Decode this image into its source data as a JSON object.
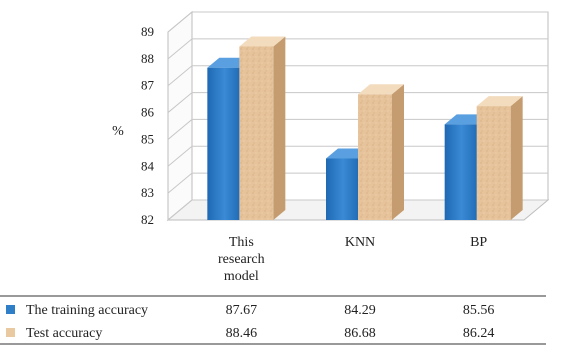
{
  "chart_data": {
    "type": "bar",
    "categories": [
      [
        "This",
        "research",
        "model"
      ],
      [
        "KNN"
      ],
      [
        "BP"
      ]
    ],
    "ylabel": "%",
    "ylim": [
      82,
      89
    ],
    "yticks": [
      82,
      83,
      84,
      85,
      86,
      87,
      88,
      89
    ],
    "grid": true,
    "legend": "table below chart",
    "series": [
      {
        "name": "The training accuracy",
        "values": [
          87.67,
          84.29,
          85.56
        ],
        "color": "#2f7fc8"
      },
      {
        "name": "Test accuracy",
        "values": [
          88.46,
          86.68,
          86.24
        ],
        "color": "#e9c9a0"
      }
    ],
    "table_values": [
      [
        "87.67",
        "84.29",
        "85.56"
      ],
      [
        "88.46",
        "86.68",
        "86.24"
      ]
    ]
  }
}
